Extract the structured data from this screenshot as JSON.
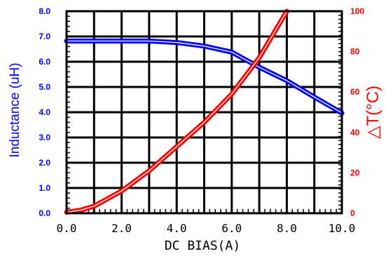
{
  "chart_data": {
    "type": "line",
    "xlabel": "DC BIAS(A)",
    "x_ticks": [
      "0.0",
      "2.0",
      "4.0",
      "6.0",
      "8.0",
      "10.0"
    ],
    "xlim": [
      0,
      10
    ],
    "grid": true,
    "left_axis": {
      "label": "Inductance (uH)",
      "ticks": [
        "0.0",
        "1.0",
        "2.0",
        "3.0",
        "4.0",
        "5.0",
        "6.0",
        "7.0",
        "8.0"
      ],
      "ylim": [
        0,
        8
      ],
      "color": "#0000ff"
    },
    "right_axis": {
      "label": "△T(°C)",
      "ticks": [
        "0",
        "20",
        "40",
        "60",
        "80",
        "100"
      ],
      "ylim": [
        0,
        100
      ],
      "color": "#ff0000"
    },
    "series": [
      {
        "axis": "left",
        "color": "#0000ff",
        "x": [
          0,
          1,
          2,
          3,
          4,
          5,
          6,
          7,
          8,
          9,
          10
        ],
        "values": [
          6.82,
          6.82,
          6.82,
          6.82,
          6.76,
          6.62,
          6.38,
          5.78,
          5.25,
          4.6,
          3.97
        ]
      },
      {
        "axis": "right",
        "color": "#ff0000",
        "x": [
          0,
          0.5,
          1,
          2,
          3,
          4,
          5,
          6,
          7,
          8
        ],
        "values": [
          0.5,
          1.5,
          3.5,
          11,
          21,
          33,
          45,
          59,
          77,
          100
        ]
      }
    ]
  }
}
